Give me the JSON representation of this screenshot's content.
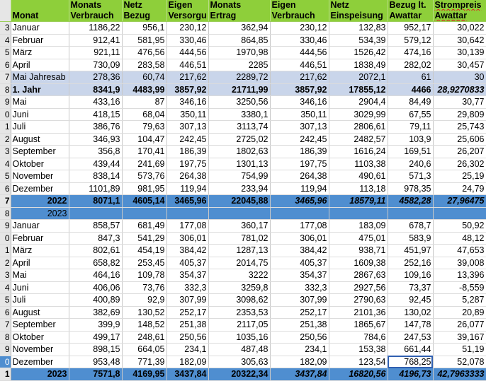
{
  "headers": {
    "line1": [
      "",
      "Monats",
      "Netz",
      "Eigen",
      "Monats",
      "Eigen",
      "Netz",
      "Bezug lt.",
      "Strompreis"
    ],
    "line2": [
      "Monat",
      "Verbrauch",
      "Bezug",
      "Versorgu",
      "Ertrag",
      "Verbrauch",
      "Einspeisung",
      "Awattar",
      "Awattar"
    ]
  },
  "rows": [
    {
      "rn": "3",
      "style": "data",
      "cells": [
        "Januar",
        "1186,22",
        "956,1",
        "230,12",
        "362,94",
        "230,12",
        "132,83",
        "952,17",
        "30,022"
      ]
    },
    {
      "rn": "4",
      "style": "data",
      "cells": [
        "Februar",
        "912,41",
        "581,95",
        "330,46",
        "864,85",
        "330,46",
        "534,39",
        "579,12",
        "30,642"
      ]
    },
    {
      "rn": "5",
      "style": "data",
      "cells": [
        "März",
        "921,11",
        "476,56",
        "444,56",
        "1970,98",
        "444,56",
        "1526,42",
        "474,16",
        "30,139"
      ]
    },
    {
      "rn": "6",
      "style": "data",
      "cells": [
        "April",
        "730,09",
        "283,58",
        "446,51",
        "2285",
        "446,51",
        "1838,49",
        "282,02",
        "30,457"
      ]
    },
    {
      "rn": "7",
      "style": "jahr",
      "cells": [
        "Mai Jahresab",
        "278,36",
        "60,74",
        "217,62",
        "2289,72",
        "217,62",
        "2072,1",
        "61",
        "30"
      ]
    },
    {
      "rn": "8",
      "style": "jahr-bold",
      "cells": [
        "1. Jahr",
        "8341,9",
        "4483,99",
        "3857,92",
        "21711,99",
        "3857,92",
        "17855,12",
        "4466",
        "28,9270833"
      ]
    },
    {
      "rn": "9",
      "style": "data",
      "cells": [
        "Mai",
        "433,16",
        "87",
        "346,16",
        "3250,56",
        "346,16",
        "2904,4",
        "84,49",
        "30,77"
      ]
    },
    {
      "rn": "0",
      "style": "data",
      "cells": [
        "Juni",
        "418,15",
        "68,04",
        "350,11",
        "3380,1",
        "350,11",
        "3029,99",
        "67,55",
        "29,809"
      ]
    },
    {
      "rn": "1",
      "style": "data",
      "cells": [
        "Juli",
        "386,76",
        "79,63",
        "307,13",
        "3113,74",
        "307,13",
        "2806,61",
        "79,11",
        "25,743"
      ]
    },
    {
      "rn": "2",
      "style": "data",
      "cells": [
        "August",
        "346,93",
        "104,47",
        "242,45",
        "2725,02",
        "242,45",
        "2482,57",
        "103,9",
        "25,606"
      ]
    },
    {
      "rn": "3",
      "style": "data",
      "cells": [
        "September",
        "356,8",
        "170,41",
        "186,39",
        "1802,63",
        "186,39",
        "1616,24",
        "169,51",
        "26,207"
      ]
    },
    {
      "rn": "4",
      "style": "data",
      "cells": [
        "Oktober",
        "439,44",
        "241,69",
        "197,75",
        "1301,13",
        "197,75",
        "1103,38",
        "240,6",
        "26,302"
      ]
    },
    {
      "rn": "5",
      "style": "data",
      "cells": [
        "November",
        "838,14",
        "573,76",
        "264,38",
        "754,99",
        "264,38",
        "490,61",
        "571,3",
        "25,19"
      ]
    },
    {
      "rn": "6",
      "style": "data",
      "cells": [
        "Dezember",
        "1101,89",
        "981,95",
        "119,94",
        "233,94",
        "119,94",
        "113,18",
        "978,35",
        "24,79"
      ]
    },
    {
      "rn": "7",
      "style": "total",
      "cells": [
        "2022",
        "8071,1",
        "4605,14",
        "3465,96",
        "22045,88",
        "3465,96",
        "18579,11",
        "4582,28",
        "27,96475"
      ]
    },
    {
      "rn": "8",
      "style": "yearrow",
      "cells": [
        "2023",
        "",
        "",
        "",
        "",
        "",
        "",
        "",
        ""
      ]
    },
    {
      "rn": "9",
      "style": "data",
      "cells": [
        "Januar",
        "858,57",
        "681,49",
        "177,08",
        "360,17",
        "177,08",
        "183,09",
        "678,7",
        "50,92"
      ]
    },
    {
      "rn": "0",
      "style": "data",
      "cells": [
        "Februar",
        "847,3",
        "541,29",
        "306,01",
        "781,02",
        "306,01",
        "475,01",
        "583,9",
        "48,12"
      ]
    },
    {
      "rn": "1",
      "style": "data",
      "cells": [
        "März",
        "802,61",
        "454,19",
        "384,42",
        "1287,13",
        "384,42",
        "938,71",
        "451,97",
        "47,653"
      ]
    },
    {
      "rn": "2",
      "style": "data",
      "cells": [
        "April",
        "658,82",
        "253,45",
        "405,37",
        "2014,75",
        "405,37",
        "1609,38",
        "252,16",
        "39,008"
      ]
    },
    {
      "rn": "3",
      "style": "data",
      "cells": [
        "Mai",
        "464,16",
        "109,78",
        "354,37",
        "3222",
        "354,37",
        "2867,63",
        "109,16",
        "13,396"
      ]
    },
    {
      "rn": "4",
      "style": "data",
      "cells": [
        "Juni",
        "406,06",
        "73,76",
        "332,3",
        "3259,8",
        "332,3",
        "2927,56",
        "73,37",
        "-8,559"
      ]
    },
    {
      "rn": "5",
      "style": "data",
      "cells": [
        "Juli",
        "400,89",
        "92,9",
        "307,99",
        "3098,62",
        "307,99",
        "2790,63",
        "92,45",
        "5,287"
      ]
    },
    {
      "rn": "6",
      "style": "data",
      "cells": [
        "August",
        "382,69",
        "130,52",
        "252,17",
        "2353,53",
        "252,17",
        "2101,36",
        "130,02",
        "20,89"
      ]
    },
    {
      "rn": "7",
      "style": "data",
      "cells": [
        "September",
        "399,9",
        "148,52",
        "251,38",
        "2117,05",
        "251,38",
        "1865,67",
        "147,78",
        "26,077"
      ]
    },
    {
      "rn": "8",
      "style": "data",
      "cells": [
        "Oktober",
        "499,17",
        "248,61",
        "250,56",
        "1035,16",
        "250,56",
        "784,6",
        "247,53",
        "39,167"
      ]
    },
    {
      "rn": "9",
      "style": "data",
      "cells": [
        "November",
        "898,15",
        "664,05",
        "234,1",
        "487,48",
        "234,1",
        "153,38",
        "661,44",
        "51,19"
      ]
    },
    {
      "rn": "0",
      "style": "active",
      "cells": [
        "Dezember",
        "953,48",
        "771,39",
        "182,09",
        "305,63",
        "182,09",
        "123,54",
        "768,25",
        "52,078"
      ]
    },
    {
      "rn": "1",
      "style": "total",
      "cells": [
        "2023",
        "7571,8",
        "4169,95",
        "3437,84",
        "20322,34",
        "3437,84",
        "16820,56",
        "4196,73",
        "42,7963333"
      ]
    }
  ]
}
